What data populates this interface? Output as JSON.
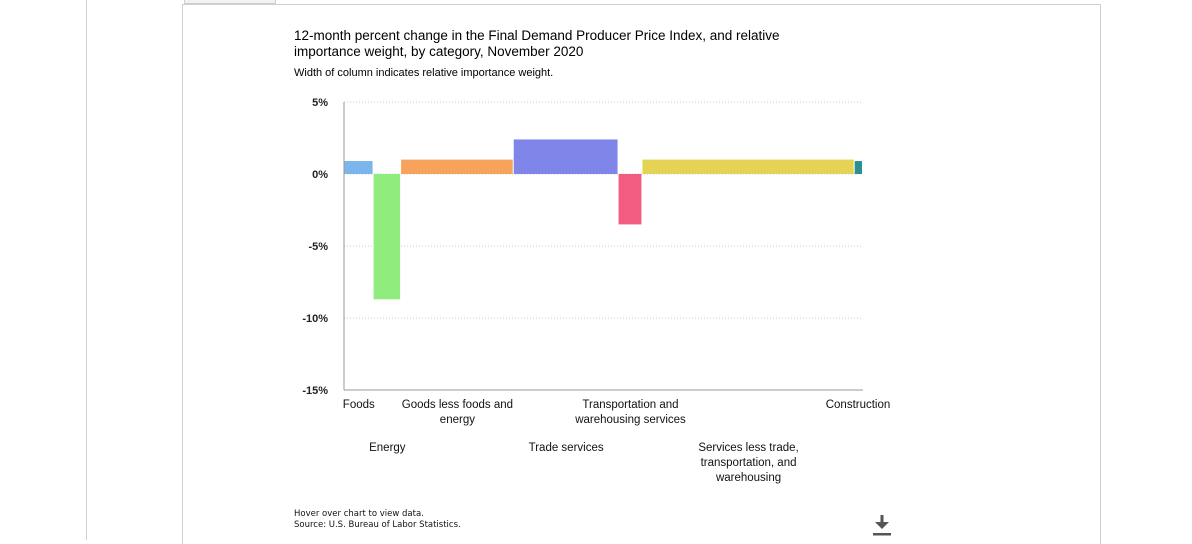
{
  "chart_data": {
    "type": "bar",
    "title": "12-month percent change in the Final Demand Producer Price Index, and relative importance weight, by category, November 2020",
    "subtitle": "Width of column indicates relative importance weight.",
    "ylim": [
      -15,
      5
    ],
    "yticks": [
      "5%",
      "0%",
      "-5%",
      "-10%",
      "-15%"
    ],
    "ytick_values": [
      5,
      0,
      -5,
      -10,
      -15
    ],
    "grid": true,
    "series": [
      {
        "category": "Foods",
        "value": 0.9,
        "weight": 5.7,
        "color": "#7cb5ec"
      },
      {
        "category": "Energy",
        "value": -8.7,
        "weight": 5.3,
        "color": "#90ed7d"
      },
      {
        "category": "Goods less foods and energy",
        "value": 1.0,
        "weight": 21.7,
        "color": "#f7a35c"
      },
      {
        "category": "Trade services",
        "value": 2.4,
        "weight": 20.2,
        "color": "#8085e9"
      },
      {
        "category": "Transportation and warehousing services",
        "value": -3.5,
        "weight": 4.6,
        "color": "#f15c80"
      },
      {
        "category": "Services less trade, transportation, and warehousing",
        "value": 1.0,
        "weight": 40.9,
        "color": "#e4d354"
      },
      {
        "category": "Construction",
        "value": 0.9,
        "weight": 1.6,
        "color": "#2b908f"
      }
    ]
  },
  "footer": {
    "hover_note": "Hover over chart to view data.",
    "source": "Source: U.S. Bureau of Labor Statistics."
  },
  "icons": {
    "download": "download-icon"
  }
}
